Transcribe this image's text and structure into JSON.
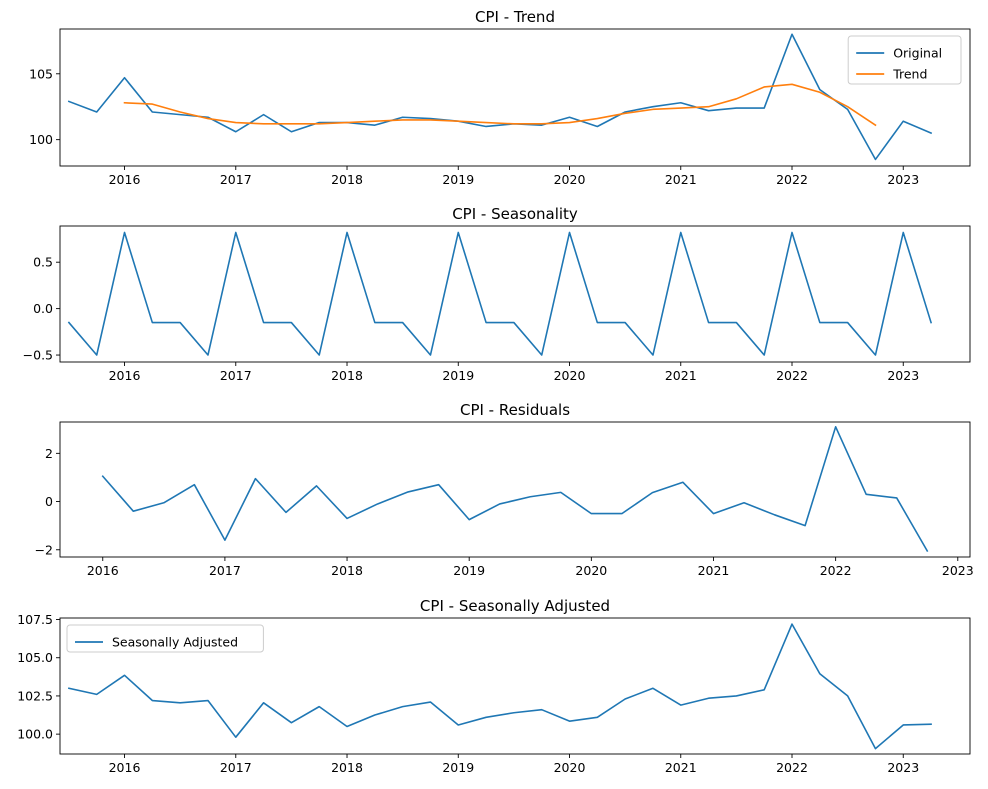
{
  "colors": {
    "blue": "#1f77b4",
    "orange": "#ff7f0e",
    "axis": "#000000",
    "legend_border": "#cccccc"
  },
  "chart_data": [
    {
      "type": "line",
      "title": "CPI - Trend",
      "xlabel": "",
      "ylabel": "",
      "x_ticks": [
        "2016",
        "2017",
        "2018",
        "2019",
        "2020",
        "2021",
        "2022",
        "2023"
      ],
      "y_ticks": [
        "100",
        "105"
      ],
      "xlim": [
        2015.42,
        2023.6
      ],
      "ylim": [
        98.0,
        108.4
      ],
      "grid": false,
      "legend": "top-right",
      "series": [
        {
          "name": "Original",
          "color": "#1f77b4",
          "x": [
            2015.5,
            2015.75,
            2016.0,
            2016.25,
            2016.5,
            2016.75,
            2017.0,
            2017.25,
            2017.5,
            2017.75,
            2018.0,
            2018.25,
            2018.5,
            2018.75,
            2019.0,
            2019.25,
            2019.5,
            2019.75,
            2020.0,
            2020.25,
            2020.5,
            2020.75,
            2021.0,
            2021.25,
            2021.5,
            2021.75,
            2022.0,
            2022.25,
            2022.5,
            2022.75,
            2023.0,
            2023.25
          ],
          "y": [
            102.9,
            102.1,
            104.7,
            102.1,
            101.9,
            101.7,
            100.6,
            101.9,
            100.6,
            101.3,
            101.3,
            101.1,
            101.7,
            101.6,
            101.4,
            101.0,
            101.2,
            101.1,
            101.7,
            101.0,
            102.1,
            102.5,
            102.8,
            102.2,
            102.4,
            102.4,
            108.0,
            103.8,
            102.3,
            98.5,
            101.4,
            100.5
          ]
        },
        {
          "name": "Trend",
          "color": "#ff7f0e",
          "x": [
            2016.0,
            2016.25,
            2016.5,
            2016.75,
            2017.0,
            2017.25,
            2017.5,
            2017.75,
            2018.0,
            2018.25,
            2018.5,
            2018.75,
            2019.0,
            2019.25,
            2019.5,
            2019.75,
            2020.0,
            2020.25,
            2020.5,
            2020.75,
            2021.0,
            2021.25,
            2021.5,
            2021.75,
            2022.0,
            2022.25,
            2022.5,
            2022.75
          ],
          "y": [
            102.8,
            102.7,
            102.1,
            101.6,
            101.3,
            101.2,
            101.2,
            101.2,
            101.3,
            101.4,
            101.5,
            101.5,
            101.4,
            101.3,
            101.2,
            101.2,
            101.3,
            101.6,
            102.0,
            102.3,
            102.4,
            102.5,
            103.1,
            104.0,
            104.2,
            103.6,
            102.5,
            101.1
          ]
        }
      ]
    },
    {
      "type": "line",
      "title": "CPI - Seasonality",
      "xlabel": "",
      "ylabel": "",
      "x_ticks": [
        "2016",
        "2017",
        "2018",
        "2019",
        "2020",
        "2021",
        "2022",
        "2023"
      ],
      "y_ticks": [
        "−0.5",
        "0.0",
        "0.5"
      ],
      "xlim": [
        2015.42,
        2023.6
      ],
      "ylim": [
        -0.575,
        0.89
      ],
      "grid": false,
      "legend": "none",
      "series": [
        {
          "color": "#1f77b4",
          "x": [
            2015.5,
            2015.75,
            2016.0,
            2016.25,
            2016.5,
            2016.75,
            2017.0,
            2017.25,
            2017.5,
            2017.75,
            2018.0,
            2018.25,
            2018.5,
            2018.75,
            2019.0,
            2019.25,
            2019.5,
            2019.75,
            2020.0,
            2020.25,
            2020.5,
            2020.75,
            2021.0,
            2021.25,
            2021.5,
            2021.75,
            2022.0,
            2022.25,
            2022.5,
            2022.75,
            2023.0,
            2023.25
          ],
          "y": [
            -0.15,
            -0.5,
            0.82,
            -0.15,
            -0.15,
            -0.5,
            0.82,
            -0.15,
            -0.15,
            -0.5,
            0.82,
            -0.15,
            -0.15,
            -0.5,
            0.82,
            -0.15,
            -0.15,
            -0.5,
            0.82,
            -0.15,
            -0.15,
            -0.5,
            0.82,
            -0.15,
            -0.15,
            -0.5,
            0.82,
            -0.15,
            -0.15,
            -0.5,
            0.82,
            -0.15
          ]
        }
      ]
    },
    {
      "type": "line",
      "title": "CPI - Residuals",
      "xlabel": "",
      "ylabel": "",
      "x_ticks": [
        "2016",
        "2017",
        "2018",
        "2019",
        "2020",
        "2021",
        "2022",
        "2023"
      ],
      "y_ticks": [
        "−2",
        "0",
        "2"
      ],
      "xlim": [
        2015.65,
        2023.1
      ],
      "ylim": [
        -2.3,
        3.3
      ],
      "grid": false,
      "legend": "none",
      "series": [
        {
          "color": "#1f77b4",
          "x": [
            2016.0,
            2016.25,
            2016.5,
            2016.75,
            2017.0,
            2017.25,
            2017.5,
            2017.75,
            2018.0,
            2018.25,
            2018.5,
            2018.75,
            2019.0,
            2019.25,
            2019.5,
            2019.75,
            2020.0,
            2020.25,
            2020.5,
            2020.75,
            2021.0,
            2021.25,
            2021.5,
            2021.75,
            2022.0,
            2022.25,
            2022.5,
            2022.75
          ],
          "y": [
            1.05,
            -0.4,
            -0.05,
            0.7,
            -1.6,
            0.95,
            -0.45,
            0.65,
            -0.7,
            -0.1,
            0.4,
            0.7,
            -0.75,
            -0.1,
            0.2,
            0.38,
            -0.5,
            -0.5,
            0.37,
            0.8,
            -0.5,
            -0.05,
            -0.55,
            -1.0,
            3.1,
            0.3,
            0.15,
            -2.05
          ]
        }
      ]
    },
    {
      "type": "line",
      "title": "CPI - Seasonally Adjusted",
      "xlabel": "",
      "ylabel": "",
      "x_ticks": [
        "2016",
        "2017",
        "2018",
        "2019",
        "2020",
        "2021",
        "2022",
        "2023"
      ],
      "y_ticks": [
        "100.0",
        "102.5",
        "105.0",
        "107.5"
      ],
      "xlim": [
        2015.42,
        2023.6
      ],
      "ylim": [
        98.7,
        107.6
      ],
      "grid": false,
      "legend": "top-left",
      "series": [
        {
          "name": "Seasonally Adjusted",
          "color": "#1f77b4",
          "x": [
            2015.5,
            2015.75,
            2016.0,
            2016.25,
            2016.5,
            2016.75,
            2017.0,
            2017.25,
            2017.5,
            2017.75,
            2018.0,
            2018.25,
            2018.5,
            2018.75,
            2019.0,
            2019.25,
            2019.5,
            2019.75,
            2020.0,
            2020.25,
            2020.5,
            2020.75,
            2021.0,
            2021.25,
            2021.5,
            2021.75,
            2022.0,
            2022.25,
            2022.5,
            2022.75,
            2023.0,
            2023.25
          ],
          "y": [
            103.0,
            102.6,
            103.85,
            102.2,
            102.05,
            102.2,
            99.8,
            102.05,
            100.75,
            101.8,
            100.5,
            101.25,
            101.8,
            102.1,
            100.6,
            101.1,
            101.4,
            101.6,
            100.85,
            101.1,
            102.3,
            103.0,
            101.9,
            102.35,
            102.5,
            102.9,
            107.2,
            103.95,
            102.5,
            99.05,
            100.6,
            100.65
          ]
        }
      ]
    }
  ]
}
